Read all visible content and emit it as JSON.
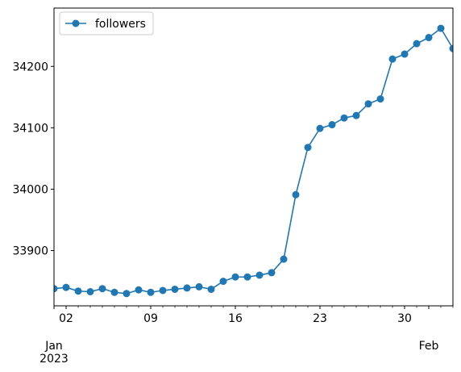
{
  "chart_data": {
    "type": "line",
    "x": [
      "2023-01-01",
      "2023-01-02",
      "2023-01-03",
      "2023-01-04",
      "2023-01-05",
      "2023-01-06",
      "2023-01-07",
      "2023-01-08",
      "2023-01-09",
      "2023-01-10",
      "2023-01-11",
      "2023-01-12",
      "2023-01-13",
      "2023-01-14",
      "2023-01-15",
      "2023-01-16",
      "2023-01-17",
      "2023-01-18",
      "2023-01-19",
      "2023-01-20",
      "2023-01-21",
      "2023-01-22",
      "2023-01-23",
      "2023-01-24",
      "2023-01-25",
      "2023-01-26",
      "2023-01-27",
      "2023-01-28",
      "2023-01-29",
      "2023-01-30",
      "2023-01-31",
      "2023-02-01",
      "2023-02-02",
      "2023-02-03"
    ],
    "series": [
      {
        "name": "followers",
        "color": "#1f77b4",
        "values": [
          33838,
          33840,
          33834,
          33833,
          33838,
          33832,
          33830,
          33836,
          33832,
          33835,
          33837,
          33839,
          33841,
          33837,
          33850,
          33857,
          33857,
          33860,
          33864,
          33886,
          33991,
          34068,
          34099,
          34105,
          34116,
          34120,
          34139,
          34147,
          34212,
          34220,
          34237,
          34247,
          34262,
          34229
        ]
      }
    ],
    "xlim": [
      "2023-01-01",
      "2023-02-03"
    ],
    "ylim": [
      33810,
      34295
    ],
    "yticks": [
      33900,
      34000,
      34100,
      34200
    ],
    "yticklabels": [
      "33900",
      "34000",
      "34100",
      "34200"
    ],
    "xticks": [
      "2023-01-02",
      "2023-01-09",
      "2023-01-16",
      "2023-01-23",
      "2023-01-30"
    ],
    "xticklabels": [
      "02",
      "09",
      "16",
      "23",
      "30"
    ],
    "xmajorlabels": [
      {
        "date": "2023-01-01",
        "month": "Jan",
        "year": "2023"
      },
      {
        "date": "2023-02-01",
        "month": "Feb",
        "year": ""
      }
    ],
    "legend": {
      "placement": "upper-left",
      "label": "followers"
    },
    "grid": false,
    "title": "",
    "xlabel": "",
    "ylabel": ""
  }
}
